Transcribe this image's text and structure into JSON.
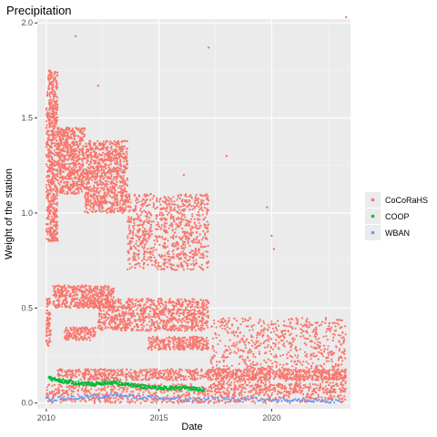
{
  "chart_data": {
    "type": "scatter",
    "title": "Precipitation",
    "xlabel": "Date",
    "ylabel": "Weight of the station",
    "x_ticks": [
      "2010",
      "2015",
      "2020"
    ],
    "y_ticks": [
      "0.0",
      "0.5",
      "1.0",
      "1.5",
      "2.0"
    ],
    "xlim": [
      2009.6,
      2023.5
    ],
    "ylim": [
      -0.03,
      2.02
    ],
    "grid": true,
    "legend_position": "right",
    "series": [
      {
        "name": "CoCoRaHS",
        "color": "#F8766D",
        "bands": [
          {
            "x": [
              2010.0,
              2010.5
            ],
            "y": [
              0.85,
              1.75
            ]
          },
          {
            "x": [
              2010.0,
              2010.2
            ],
            "y": [
              0.3,
              0.55
            ]
          },
          {
            "x": [
              2010.5,
              2011.7
            ],
            "y": [
              1.1,
              1.45
            ]
          },
          {
            "x": [
              2010.3,
              2013.0
            ],
            "y": [
              0.5,
              0.62
            ]
          },
          {
            "x": [
              2010.8,
              2012.2
            ],
            "y": [
              0.33,
              0.4
            ]
          },
          {
            "x": [
              2011.7,
              2013.6
            ],
            "y": [
              1.0,
              1.38
            ]
          },
          {
            "x": [
              2012.3,
              2017.2
            ],
            "y": [
              0.38,
              0.55
            ]
          },
          {
            "x": [
              2013.6,
              2017.2
            ],
            "y": [
              0.7,
              1.1
            ]
          },
          {
            "x": [
              2014.5,
              2017.2
            ],
            "y": [
              0.28,
              0.35
            ]
          },
          {
            "x": [
              2017.3,
              2023.3
            ],
            "y": [
              0.05,
              0.45
            ]
          },
          {
            "x": [
              2010.0,
              2023.3
            ],
            "y": [
              0.0,
              0.1
            ]
          },
          {
            "x": [
              2010.5,
              2023.3
            ],
            "y": [
              0.12,
              0.18
            ]
          }
        ],
        "outliers": [
          {
            "x": 2011.3,
            "y": 1.93
          },
          {
            "x": 2012.3,
            "y": 1.67
          },
          {
            "x": 2016.1,
            "y": 1.2
          },
          {
            "x": 2017.2,
            "y": 1.87
          },
          {
            "x": 2018.0,
            "y": 1.3
          },
          {
            "x": 2019.8,
            "y": 1.03
          },
          {
            "x": 2020.0,
            "y": 0.88
          },
          {
            "x": 2020.1,
            "y": 0.81
          },
          {
            "x": 2023.3,
            "y": 2.03
          }
        ]
      },
      {
        "name": "COOP",
        "color": "#00BA38",
        "points": [
          {
            "x": 2010.1,
            "y": 0.13
          },
          {
            "x": 2011.0,
            "y": 0.11
          },
          {
            "x": 2012.0,
            "y": 0.1
          },
          {
            "x": 2013.0,
            "y": 0.11
          },
          {
            "x": 2014.0,
            "y": 0.09
          },
          {
            "x": 2015.0,
            "y": 0.08
          },
          {
            "x": 2016.0,
            "y": 0.08
          },
          {
            "x": 2017.0,
            "y": 0.07
          }
        ]
      },
      {
        "name": "WBAN",
        "color": "#619CFF",
        "points": [
          {
            "x": 2010.0,
            "y": 0.02
          },
          {
            "x": 2013.0,
            "y": 0.04
          },
          {
            "x": 2016.0,
            "y": 0.02
          },
          {
            "x": 2020.0,
            "y": 0.02
          },
          {
            "x": 2023.0,
            "y": 0.01
          }
        ]
      }
    ]
  }
}
